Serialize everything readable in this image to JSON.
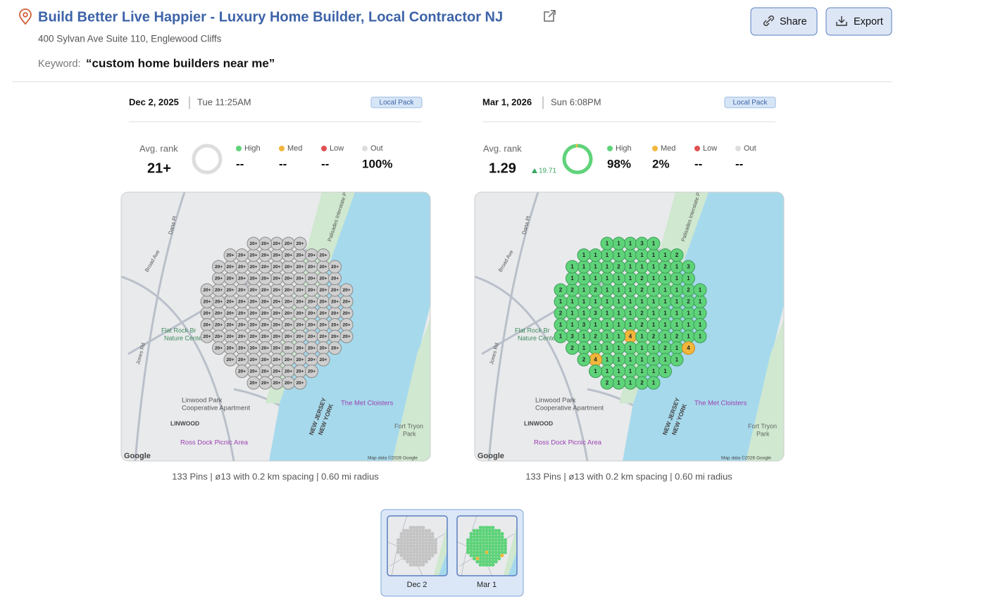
{
  "header": {
    "title": "Build Better Live Happier - Luxury Home Builder, Local Contractor NJ",
    "address": "400 Sylvan Ave Suite 110, Englewood Cliffs",
    "keyword_label": "Keyword:",
    "keyword": "“custom home builders near me”"
  },
  "actions": [
    "Share",
    "Export"
  ],
  "avg_rank_label": "Avg. rank",
  "legend": [
    {
      "name": "High",
      "color": "#5fd37a"
    },
    {
      "name": "Med",
      "color": "#f2b63c"
    },
    {
      "name": "Low",
      "color": "#e05252"
    },
    {
      "name": "Out",
      "color": "#dddddd"
    }
  ],
  "map_labels": [
    "Flat Rock Br",
    "Nature Center",
    "Linwood Park",
    "Cooperative Apartment",
    "LINWOOD",
    "Ross Dock Picnic Area",
    "The Met Cloisters",
    "Fort Tryon",
    "Park",
    "NEW JERSEY",
    "NEW YORK",
    "Broad Ave",
    "Dana Pl",
    "Jones Rd",
    "Palisades Interstate Pkwy",
    "Google",
    "Map data ©2026 Google"
  ],
  "scans": [
    {
      "date": "Dec 2, 2025",
      "time": "Tue 11:25AM",
      "badge": "Local Pack",
      "avg_rank": "21+",
      "stats": {
        "values": [
          null,
          null,
          null,
          100
        ],
        "value_labels": [
          "--",
          "--",
          "--",
          "100%"
        ]
      },
      "pins": [
        "20+",
        "20+",
        "20+",
        "20+",
        "20+",
        "20+",
        "20+",
        "20+",
        "20+",
        "20+",
        "20+",
        "20+",
        "20+",
        "20+",
        "20+",
        "20+",
        "20+",
        "20+",
        "20+",
        "20+",
        "20+",
        "20+",
        "20+",
        "20+",
        "20+",
        "20+",
        "20+",
        "20+",
        "20+",
        "20+",
        "20+",
        "20+",
        "20+",
        "20+",
        "20+",
        "20+",
        "20+",
        "20+",
        "20+",
        "20+",
        "20+",
        "20+",
        "20+",
        "20+",
        "20+",
        "20+",
        "20+",
        "20+",
        "20+",
        "20+",
        "20+",
        "20+",
        "20+",
        "20+",
        "20+",
        "20+",
        "20+",
        "20+",
        "20+",
        "20+",
        "20+",
        "20+",
        "20+",
        "20+",
        "20+",
        "20+",
        "20+",
        "20+",
        "20+",
        "20+",
        "20+",
        "20+",
        "20+",
        "20+",
        "20+",
        "20+",
        "20+",
        "20+",
        "20+",
        "20+",
        "20+",
        "20+",
        "20+",
        "20+",
        "20+",
        "20+",
        "20+",
        "20+",
        "20+",
        "20+",
        "20+",
        "20+",
        "20+",
        "20+",
        "20+",
        "20+",
        "20+",
        "20+",
        "20+",
        "20+",
        "20+",
        "20+",
        "20+",
        "20+",
        "20+",
        "20+",
        "20+",
        "20+",
        "20+",
        "20+",
        "20+",
        "20+",
        "20+",
        "20+",
        "20+",
        "20+",
        "20+",
        "20+",
        "20+",
        "20+",
        "20+",
        "20+",
        "20+",
        "20+",
        "20+",
        "20+",
        "20+",
        "20+",
        "20+",
        "20+",
        "20+",
        "20+",
        "20+"
      ],
      "caption": "133 Pins | ø13 with 0.2 km spacing | 0.60 mi radius",
      "thumb_label": "Dec 2"
    },
    {
      "date": "Mar 1, 2026",
      "time": "Sun 6:08PM",
      "badge": "Local Pack",
      "avg_rank": "1.29",
      "delta": "19.71",
      "stats": {
        "values": [
          98,
          2,
          null,
          null
        ],
        "value_labels": [
          "98%",
          "2%",
          "--",
          "--"
        ]
      },
      "pins": [
        "1",
        "1",
        "2",
        "1",
        "1",
        "1",
        "1",
        "2",
        "1",
        "1",
        "1",
        "4",
        "1",
        "1",
        "1",
        "2",
        "1",
        "1",
        "1",
        "1",
        "1",
        "1",
        "1",
        "2",
        "1",
        "1",
        "1",
        "1",
        "3",
        "1",
        "1",
        "2",
        "1",
        "1",
        "1",
        "1",
        "1",
        "2",
        "1",
        "1",
        "1",
        "1",
        "1",
        "1",
        "2",
        "1",
        "1",
        "1",
        "1",
        "1",
        "2",
        "1",
        "1",
        "1",
        "1",
        "1",
        "3",
        "1",
        "1",
        "2",
        "1",
        "1",
        "1",
        "1",
        "1",
        "2",
        "1",
        "1",
        "1",
        "1",
        "1",
        "1",
        "2",
        "1",
        "1",
        "1",
        "1",
        "1",
        "4",
        "1",
        "1",
        "1",
        "1",
        "1",
        "2",
        "1",
        "1",
        "1",
        "1",
        "2",
        "1",
        "1",
        "2",
        "1",
        "1",
        "1",
        "3",
        "1",
        "1",
        "1",
        "2",
        "1",
        "1",
        "1",
        "1",
        "4",
        "1",
        "1",
        "2",
        "1",
        "1",
        "1",
        "2",
        "1",
        "1",
        "3",
        "1",
        "1",
        "2",
        "1",
        "1",
        "2",
        "1",
        "1",
        "1",
        "1",
        "1",
        "2",
        "1",
        "1",
        "1",
        "2",
        "3"
      ],
      "caption": "133 Pins | ø13 with 0.2 km spacing | 0.60 mi radius",
      "thumb_label": "Mar 1"
    }
  ]
}
